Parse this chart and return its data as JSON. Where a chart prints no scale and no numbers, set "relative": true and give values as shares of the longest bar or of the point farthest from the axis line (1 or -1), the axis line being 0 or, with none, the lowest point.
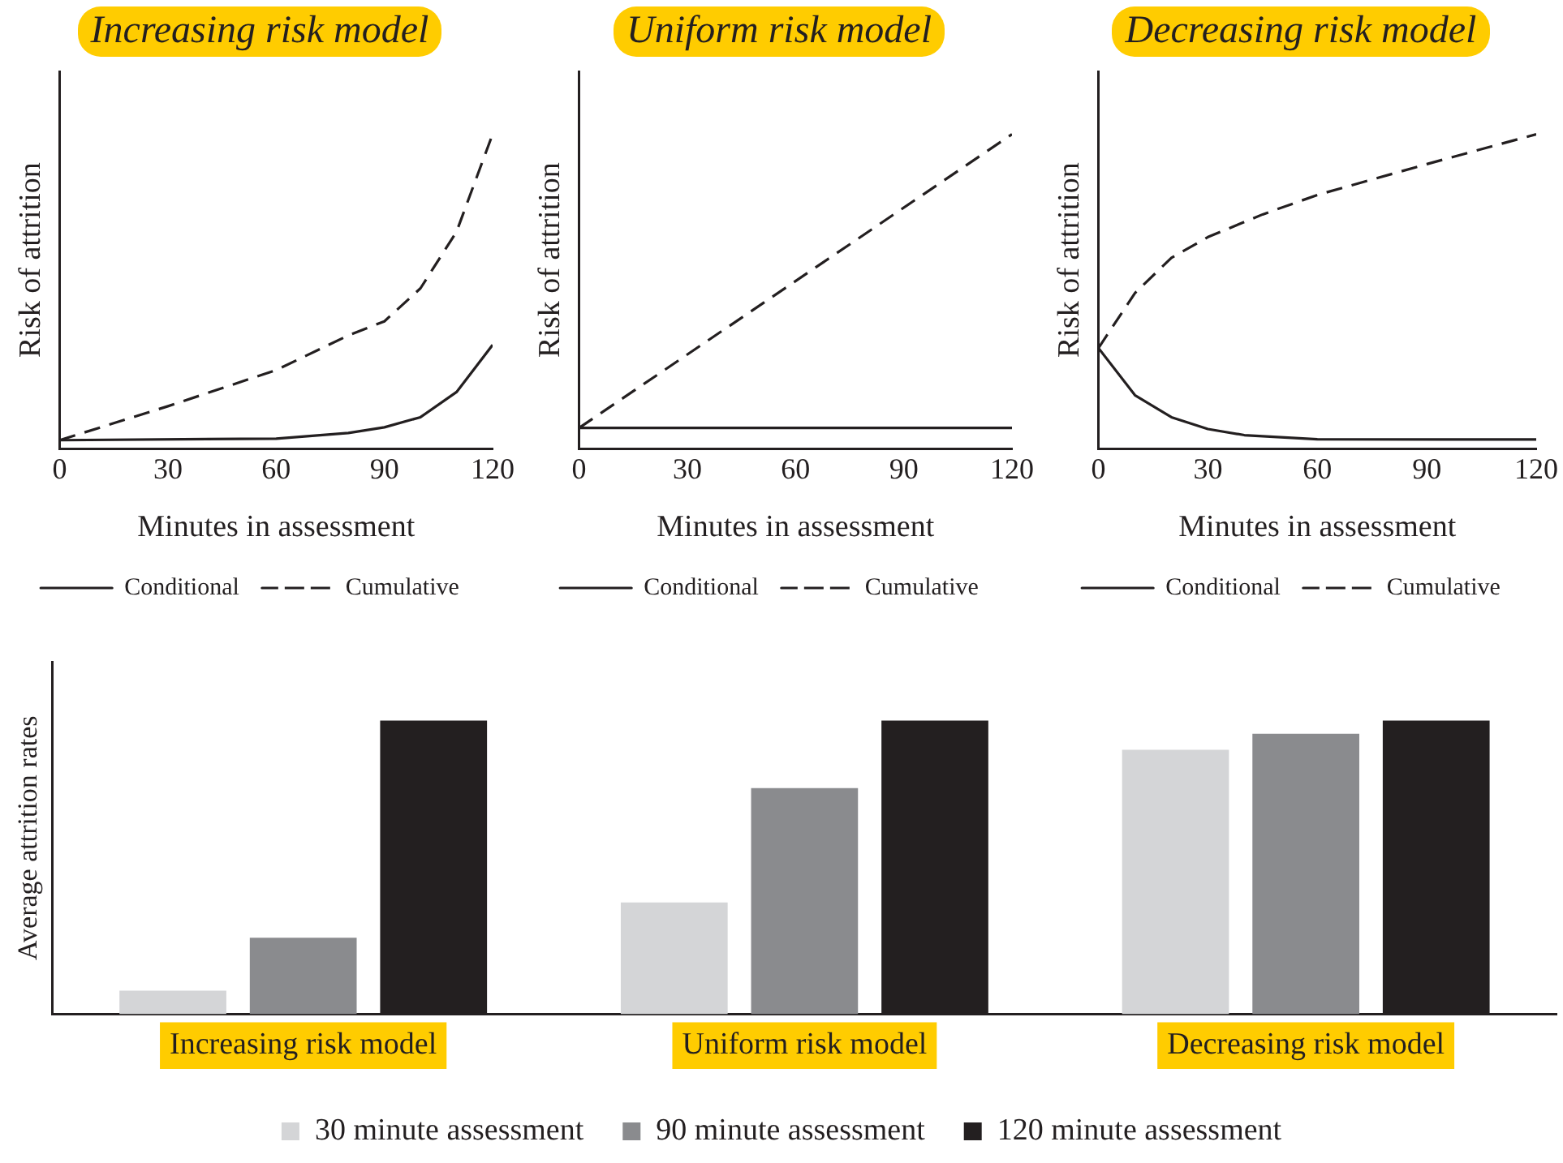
{
  "chart_data": [
    {
      "type": "line",
      "title": "Increasing risk model",
      "xlabel": "Minutes in assessment",
      "ylabel": "Risk of attrition",
      "relative": true,
      "xlim": [
        0,
        120
      ],
      "xticks": [
        0,
        30,
        60,
        90,
        120
      ],
      "grid": false,
      "legend": "bottom",
      "marker": "none",
      "series": [
        {
          "name": "Conditional",
          "color": "#231f20",
          "line_style": "solid",
          "x": [
            0,
            60,
            80,
            90,
            100,
            110,
            120
          ],
          "values": [
            0.027,
            0.032,
            0.05,
            0.068,
            0.1,
            0.18,
            0.33
          ]
        },
        {
          "name": "Cumulative",
          "color": "#231f20",
          "line_style": "dashed",
          "x": [
            0,
            30,
            60,
            80,
            90,
            100,
            110,
            120
          ],
          "values": [
            0.027,
            0.135,
            0.25,
            0.36,
            0.405,
            0.51,
            0.69,
            1
          ]
        }
      ]
    },
    {
      "type": "line",
      "title": "Uniform risk model",
      "xlabel": "Minutes in assessment",
      "ylabel": "Risk of attrition",
      "relative": true,
      "xlim": [
        0,
        120
      ],
      "xticks": [
        0,
        30,
        60,
        90,
        120
      ],
      "grid": false,
      "legend": "bottom",
      "marker": "none",
      "series": [
        {
          "name": "Conditional",
          "color": "#231f20",
          "line_style": "solid",
          "x": [
            0,
            120
          ],
          "values": [
            0.066,
            0.066
          ]
        },
        {
          "name": "Cumulative",
          "color": "#231f20",
          "line_style": "dashed",
          "x": [
            0,
            120
          ],
          "values": [
            0.066,
            1
          ]
        }
      ]
    },
    {
      "type": "line",
      "title": "Decreasing risk model",
      "xlabel": "Minutes in assessment",
      "ylabel": "Risk of attrition",
      "relative": true,
      "xlim": [
        0,
        120
      ],
      "xticks": [
        0,
        30,
        60,
        90,
        120
      ],
      "grid": false,
      "legend": "bottom",
      "marker": "none",
      "series": [
        {
          "name": "Conditional",
          "color": "#231f20",
          "line_style": "solid",
          "x": [
            0,
            10,
            20,
            30,
            40,
            60,
            120
          ],
          "values": [
            0.32,
            0.17,
            0.1,
            0.0625,
            0.043,
            0.03,
            0.029
          ]
        },
        {
          "name": "Cumulative",
          "color": "#231f20",
          "line_style": "dashed",
          "x": [
            0,
            10,
            20,
            30,
            45,
            60,
            90,
            120
          ],
          "values": [
            0.32,
            0.495,
            0.607,
            0.673,
            0.745,
            0.807,
            0.905,
            1
          ]
        }
      ]
    },
    {
      "type": "bar",
      "ylabel": "Average attrition rates",
      "relative": true,
      "grid": false,
      "legend": "bottom",
      "categories": [
        "Increasing risk model",
        "Uniform risk model",
        "Decreasing risk model"
      ],
      "series": [
        {
          "name": "30 minute assessment",
          "color": "#d4d5d7",
          "values": [
            0.08,
            0.38,
            0.9
          ]
        },
        {
          "name": "90 minute assessment",
          "color": "#8a8b8e",
          "values": [
            0.26,
            0.77,
            0.955
          ]
        },
        {
          "name": "120 minute assessment",
          "color": "#231f20",
          "values": [
            1,
            1,
            1
          ]
        }
      ]
    }
  ]
}
